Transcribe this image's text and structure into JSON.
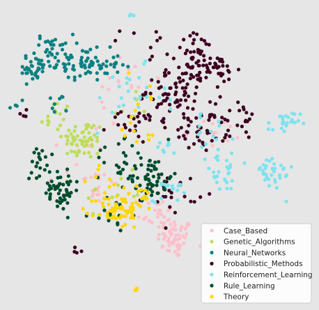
{
  "chart_data": {
    "type": "scatter",
    "title": "",
    "xlabel": "",
    "ylabel": "",
    "grid": false,
    "axes_visible": false,
    "legend_position": "bottom-right",
    "xlim": [
      0,
      100
    ],
    "ylim": [
      0,
      100
    ],
    "series": [
      {
        "name": "Case_Based",
        "color": "#ffc0cb",
        "clusters": [
          {
            "cx": 55.0,
            "cy": 23.0,
            "sx": 2.8,
            "sy": 3.2,
            "n": 60
          },
          {
            "cx": 49.0,
            "cy": 31.0,
            "sx": 3.0,
            "sy": 2.5,
            "n": 25
          },
          {
            "cx": 30.0,
            "cy": 40.0,
            "sx": 3.5,
            "sy": 4.0,
            "n": 18
          },
          {
            "cx": 38.0,
            "cy": 74.0,
            "sx": 5.0,
            "sy": 5.0,
            "n": 14
          },
          {
            "cx": 67.0,
            "cy": 57.0,
            "sx": 6.0,
            "sy": 5.0,
            "n": 10
          },
          {
            "cx": 27.0,
            "cy": 52.0,
            "sx": 6.0,
            "sy": 6.0,
            "n": 10
          }
        ]
      },
      {
        "name": "Genetic_Algorithms",
        "color": "#bedd5a",
        "clusters": [
          {
            "cx": 26.0,
            "cy": 55.0,
            "sx": 3.2,
            "sy": 3.2,
            "n": 60
          },
          {
            "cx": 17.0,
            "cy": 62.0,
            "sx": 2.5,
            "sy": 3.0,
            "n": 14
          },
          {
            "cx": 37.0,
            "cy": 38.0,
            "sx": 5.0,
            "sy": 3.0,
            "n": 12
          },
          {
            "cx": 41.0,
            "cy": 65.0,
            "sx": 4.0,
            "sy": 3.0,
            "n": 6
          }
        ]
      },
      {
        "name": "Neural_Networks",
        "color": "#0b8082",
        "clusters": [
          {
            "cx": 27.0,
            "cy": 79.0,
            "sx": 5.5,
            "sy": 2.5,
            "n": 75
          },
          {
            "cx": 10.0,
            "cy": 78.0,
            "sx": 2.2,
            "sy": 2.2,
            "n": 28
          },
          {
            "cx": 17.0,
            "cy": 84.0,
            "sx": 3.0,
            "sy": 2.5,
            "n": 35
          },
          {
            "cx": 17.0,
            "cy": 66.0,
            "sx": 2.0,
            "sy": 2.0,
            "n": 8
          },
          {
            "cx": 6.0,
            "cy": 66.0,
            "sx": 1.5,
            "sy": 1.0,
            "n": 5
          }
        ]
      },
      {
        "name": "Probabilistic_Methods",
        "color": "#3c0020",
        "clusters": [
          {
            "cx": 55.0,
            "cy": 71.0,
            "sx": 4.5,
            "sy": 4.0,
            "n": 70
          },
          {
            "cx": 62.0,
            "cy": 82.0,
            "sx": 3.5,
            "sy": 3.5,
            "n": 40
          },
          {
            "cx": 69.0,
            "cy": 77.0,
            "sx": 3.0,
            "sy": 3.0,
            "n": 30
          },
          {
            "cx": 63.0,
            "cy": 59.0,
            "sx": 4.0,
            "sy": 4.0,
            "n": 45
          },
          {
            "cx": 74.0,
            "cy": 61.0,
            "sx": 3.0,
            "sy": 3.0,
            "n": 20
          },
          {
            "cx": 44.0,
            "cy": 62.0,
            "sx": 5.0,
            "sy": 4.0,
            "n": 30
          },
          {
            "cx": 54.0,
            "cy": 38.0,
            "sx": 4.0,
            "sy": 3.0,
            "n": 25
          },
          {
            "cx": 48.0,
            "cy": 85.0,
            "sx": 5.0,
            "sy": 3.0,
            "n": 10
          },
          {
            "cx": 7.0,
            "cy": 64.0,
            "sx": 1.0,
            "sy": 0.8,
            "n": 4
          },
          {
            "cx": 25.0,
            "cy": 19.0,
            "sx": 0.8,
            "sy": 0.8,
            "n": 4
          }
        ]
      },
      {
        "name": "Reinforcement_Learning",
        "color": "#7fe3ee",
        "clusters": [
          {
            "cx": 89.0,
            "cy": 60.0,
            "sx": 2.5,
            "sy": 2.0,
            "n": 25
          },
          {
            "cx": 85.0,
            "cy": 44.0,
            "sx": 3.5,
            "sy": 3.0,
            "n": 35
          },
          {
            "cx": 70.0,
            "cy": 44.0,
            "sx": 3.5,
            "sy": 3.0,
            "n": 25
          },
          {
            "cx": 53.0,
            "cy": 40.0,
            "sx": 2.5,
            "sy": 2.5,
            "n": 20
          },
          {
            "cx": 67.0,
            "cy": 56.0,
            "sx": 4.0,
            "sy": 3.0,
            "n": 15
          },
          {
            "cx": 40.0,
            "cy": 68.0,
            "sx": 6.0,
            "sy": 5.0,
            "n": 25
          },
          {
            "cx": 52.0,
            "cy": 53.0,
            "sx": 2.0,
            "sy": 1.5,
            "n": 8
          },
          {
            "cx": 41.5,
            "cy": 95.0,
            "sx": 0.4,
            "sy": 0.3,
            "n": 3
          }
        ]
      },
      {
        "name": "Rule_Learning",
        "color": "#004c2e",
        "clusters": [
          {
            "cx": 18.0,
            "cy": 39.0,
            "sx": 3.5,
            "sy": 3.5,
            "n": 55
          },
          {
            "cx": 13.0,
            "cy": 48.0,
            "sx": 1.5,
            "sy": 3.5,
            "n": 15
          },
          {
            "cx": 47.0,
            "cy": 43.0,
            "sx": 3.5,
            "sy": 3.5,
            "n": 55
          },
          {
            "cx": 38.0,
            "cy": 49.0,
            "sx": 4.0,
            "sy": 4.0,
            "n": 20
          },
          {
            "cx": 35.0,
            "cy": 31.0,
            "sx": 3.0,
            "sy": 3.0,
            "n": 15
          }
        ]
      },
      {
        "name": "Theory",
        "color": "#ffd700",
        "clusters": [
          {
            "cx": 37.0,
            "cy": 32.0,
            "sx": 3.5,
            "sy": 2.8,
            "n": 60
          },
          {
            "cx": 44.0,
            "cy": 36.0,
            "sx": 2.5,
            "sy": 2.0,
            "n": 15
          },
          {
            "cx": 43.0,
            "cy": 6.5,
            "sx": 0.4,
            "sy": 0.4,
            "n": 4
          },
          {
            "cx": 44.0,
            "cy": 64.0,
            "sx": 6.0,
            "sy": 6.0,
            "n": 15
          },
          {
            "cx": 34.0,
            "cy": 42.0,
            "sx": 3.0,
            "sy": 3.0,
            "n": 8
          }
        ]
      }
    ]
  }
}
